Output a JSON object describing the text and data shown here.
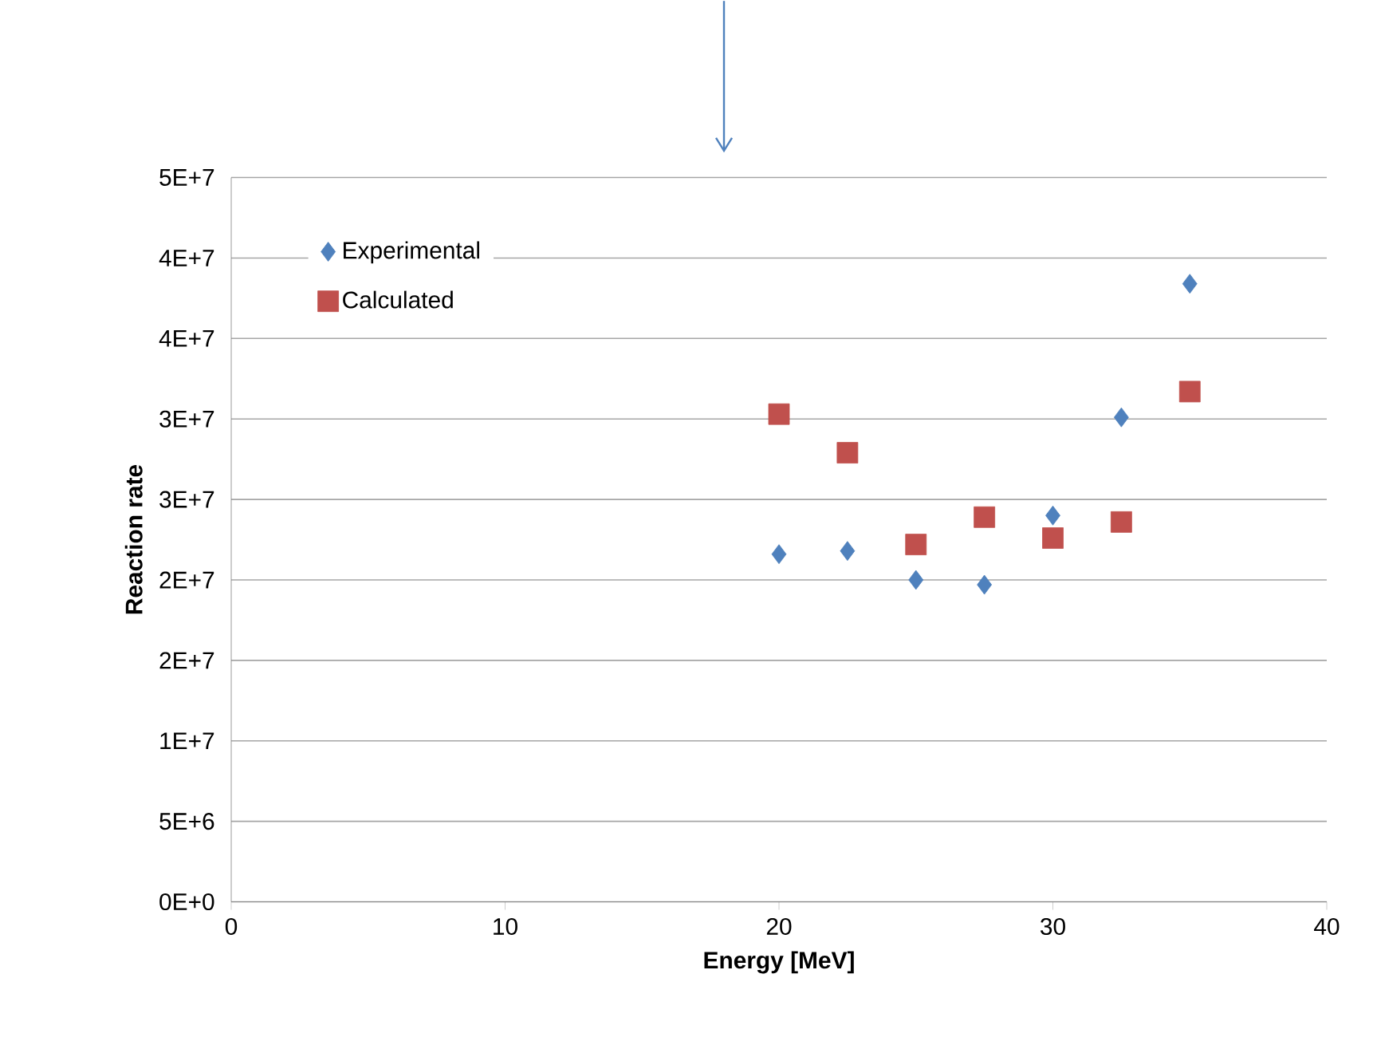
{
  "chart_data": {
    "type": "scatter",
    "xlabel": "Energy [MeV]",
    "ylabel": "Reaction rate",
    "x": [
      20,
      22.5,
      25,
      27.5,
      30,
      32.5,
      35
    ],
    "series": [
      {
        "name": "Experimental",
        "color": "#4f81bd",
        "marker": "diamond",
        "values": [
          21600000,
          21800000,
          20000000,
          19700000,
          24000000,
          30100000,
          38400000
        ]
      },
      {
        "name": "Calculated",
        "color": "#c0504d",
        "marker": "square",
        "values": [
          30300000,
          27900000,
          22200000,
          23900000,
          22600000,
          23600000,
          31700000
        ]
      }
    ],
    "xlim": [
      0,
      40
    ],
    "xticks": [
      0,
      10,
      20,
      30,
      40
    ],
    "ylim": [
      0,
      45000000
    ],
    "yticks": [
      {
        "value": 0,
        "label": "0E+0"
      },
      {
        "value": 5000000,
        "label": "5E+6"
      },
      {
        "value": 10000000,
        "label": "1E+7"
      },
      {
        "value": 15000000,
        "label": "2E+7"
      },
      {
        "value": 20000000,
        "label": "2E+7"
      },
      {
        "value": 25000000,
        "label": "3E+7"
      },
      {
        "value": 30000000,
        "label": "3E+7"
      },
      {
        "value": 35000000,
        "label": "4E+7"
      },
      {
        "value": 40000000,
        "label": "4E+7"
      },
      {
        "value": 45000000,
        "label": "5E+7"
      }
    ],
    "grid": "y",
    "legend": "top left"
  }
}
